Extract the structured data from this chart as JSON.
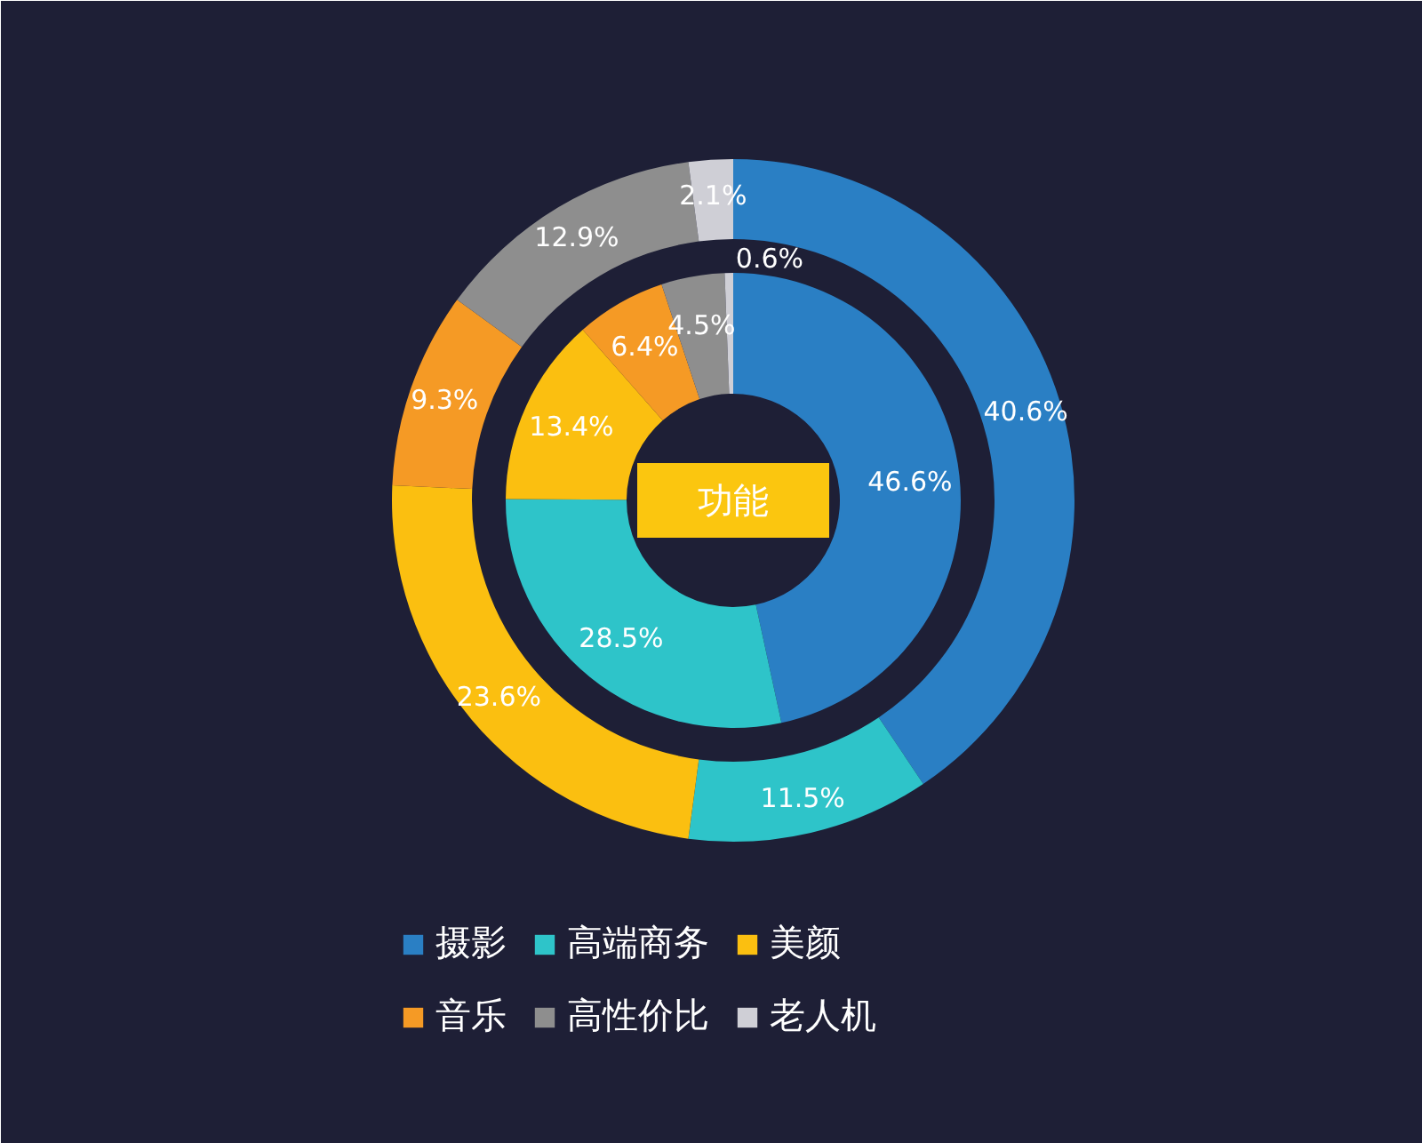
{
  "chart_data": {
    "type": "donut",
    "title": "功能",
    "categories": [
      "摄影",
      "高端商务",
      "美颜",
      "音乐",
      "高性价比",
      "老人机"
    ],
    "colors": [
      "#2a7fc4",
      "#2ec4c9",
      "#fbbf10",
      "#f59a25",
      "#8e8e8e",
      "#cfcfd6"
    ],
    "series": [
      {
        "values": [
          40.6,
          11.5,
          23.6,
          9.3,
          12.9,
          2.1
        ],
        "value_labels": [
          "40.6%",
          "11.5%",
          "23.6%",
          "9.3%",
          "12.9%",
          "2.1%"
        ]
      },
      {
        "values": [
          46.6,
          28.5,
          13.4,
          6.4,
          4.5,
          0.6
        ],
        "value_labels": [
          "46.6%",
          "28.5%",
          "13.4%",
          "6.4%",
          "4.5%",
          "0.6%"
        ]
      }
    ],
    "legend": "bottom"
  }
}
